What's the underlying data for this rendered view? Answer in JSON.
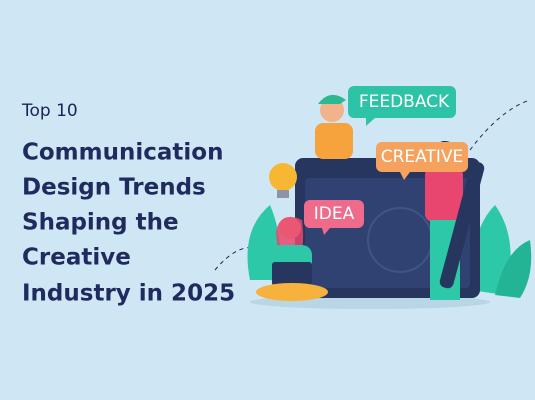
{
  "heading": {
    "kicker": "Top 10",
    "title_lines": [
      "Communication",
      "Design Trends",
      "Shaping the",
      "Creative",
      "Industry in 2025"
    ]
  },
  "illustration": {
    "bubbles": [
      "FEEDBACK",
      "CREATIVE",
      "IDEA"
    ]
  }
}
